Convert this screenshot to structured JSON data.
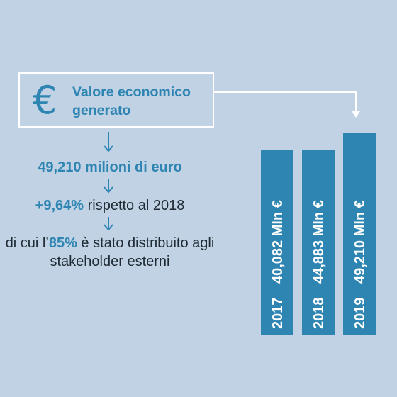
{
  "icon": "euro-icon",
  "title": "Valore economico generato",
  "stat_value": "49,210 milioni di euro",
  "growth": {
    "value": "+9,64%",
    "rest": " rispetto al 2018"
  },
  "distribution": {
    "prefix": "di cui l’",
    "value": "85%",
    "rest": " è stato distribuito agli stakeholder esterni"
  },
  "colors": {
    "accent": "#2e85b2",
    "bar": "#2e85b2",
    "background": "#c0d2e4",
    "text": "#1f2a33"
  },
  "chart_data": {
    "type": "bar",
    "categories": [
      "2017",
      "2018",
      "2019"
    ],
    "values": [
      40082,
      44883,
      49210
    ],
    "value_labels": [
      "40,082 Mln €",
      "44,883 Mln €",
      "49,210 Mln €"
    ],
    "unit": "Mln €",
    "highlight_index": 2
  }
}
